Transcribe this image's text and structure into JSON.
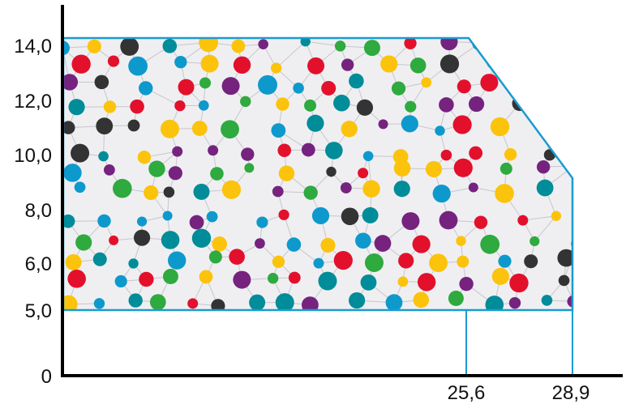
{
  "diagram": {
    "y_labels": [
      "0",
      "5,0",
      "6,0",
      "8,0",
      "10,0",
      "12,0",
      "14,0"
    ],
    "x_labels": [
      "25,6",
      "28,9"
    ],
    "colors": {
      "outline": "#1a9bd0",
      "fill": "#efeff2",
      "axis": "#000000",
      "mesh": "#c6c6cc",
      "dots": [
        "#e3102c",
        "#2eaa3f",
        "#75237f",
        "#0e99cc",
        "#fcc30c",
        "#008c99",
        "#333333"
      ]
    }
  }
}
